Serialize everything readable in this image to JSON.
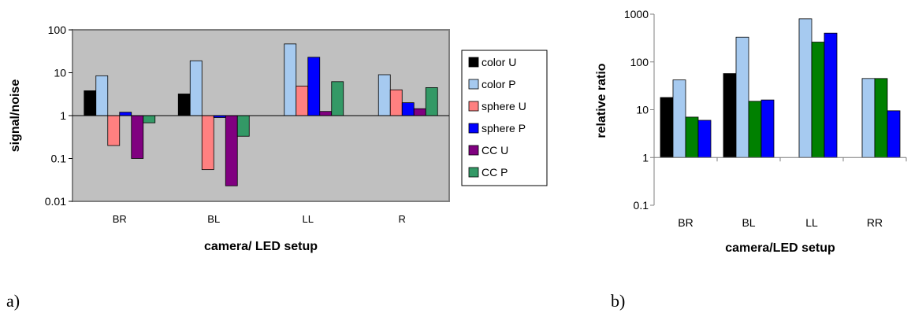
{
  "chart_data": [
    {
      "type": "bar",
      "panel_label": "a)",
      "xlabel": "camera/ LED setup",
      "ylabel": "signal/noise",
      "yscale": "log",
      "ylim": [
        0.01,
        100
      ],
      "baseline": 1,
      "yticks": [
        "0.01",
        "0.1",
        "1",
        "10",
        "100"
      ],
      "categories": [
        "BR",
        "BL",
        "LL",
        "R"
      ],
      "legend_position": "right",
      "plot_background": "#c0c0c0",
      "series": [
        {
          "name": "color U",
          "color": "#000000",
          "values": [
            3.8,
            3.2,
            null,
            null
          ]
        },
        {
          "name": "color P",
          "color": "#a6caf0",
          "values": [
            8.5,
            19,
            47,
            9
          ]
        },
        {
          "name": "sphere U",
          "color": "#ff8080",
          "values": [
            0.2,
            0.055,
            4.9,
            4.0
          ]
        },
        {
          "name": "sphere P",
          "color": "#0000ff",
          "values": [
            1.2,
            0.9,
            23,
            2.0
          ]
        },
        {
          "name": "CC U",
          "color": "#800080",
          "values": [
            0.1,
            0.023,
            1.25,
            1.45
          ]
        },
        {
          "name": "CC P",
          "color": "#339966",
          "values": [
            0.68,
            0.33,
            6.2,
            4.5
          ]
        }
      ]
    },
    {
      "type": "bar",
      "panel_label": "b)",
      "xlabel": "camera/LED setup",
      "ylabel": "relative ratio",
      "yscale": "log",
      "ylim": [
        0.1,
        1000
      ],
      "baseline": 1,
      "yticks": [
        "0.1",
        "1",
        "10",
        "100",
        "1000"
      ],
      "categories": [
        "BR",
        "BL",
        "LL",
        "RR"
      ],
      "plot_background": "#ffffff",
      "series": [
        {
          "color": "#000000",
          "values": [
            18,
            57,
            null,
            null
          ]
        },
        {
          "color": "#a6caf0",
          "values": [
            42,
            330,
            800,
            45
          ]
        },
        {
          "color": "#008000",
          "values": [
            7,
            15,
            260,
            45
          ]
        },
        {
          "color": "#0000ff",
          "values": [
            6,
            16,
            400,
            9.5
          ]
        }
      ]
    }
  ]
}
